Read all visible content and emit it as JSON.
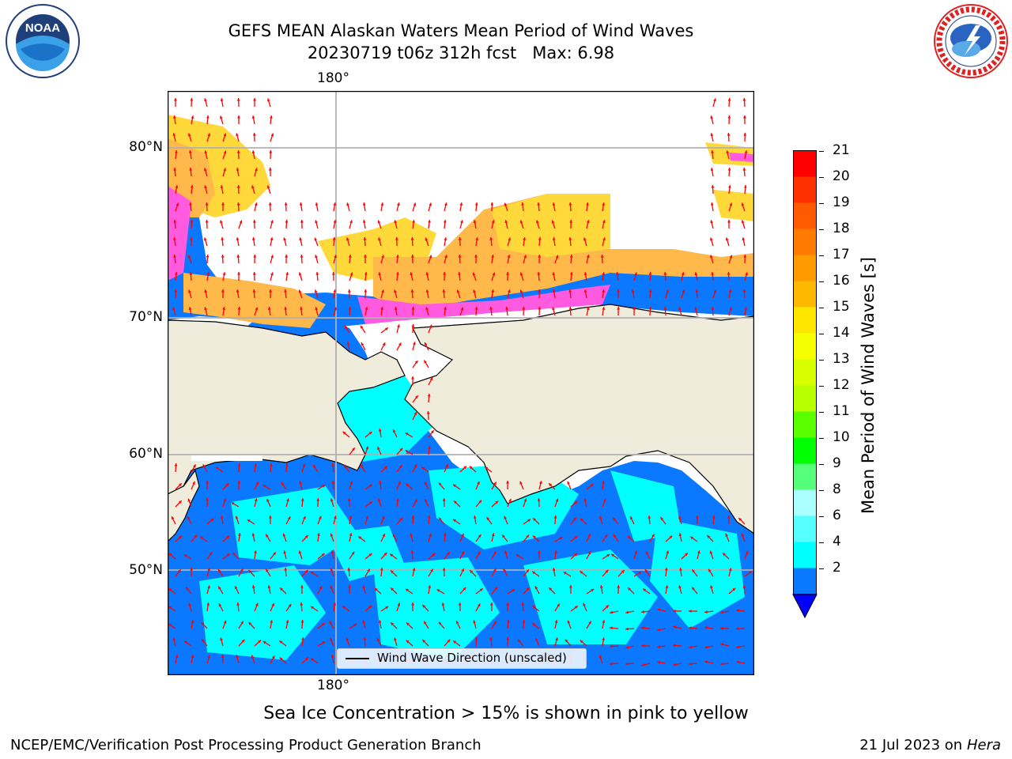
{
  "header": {
    "title_line1": "GEFS MEAN Alaskan Waters Mean Period of Wind Waves",
    "title_line2": "20230719 t06z 312h fcst   Max: 6.98"
  },
  "logos": {
    "left": "noaa-logo",
    "right": "nws-logo",
    "noaa_text": "NOAA",
    "nws_ring_text": "NATIONAL WEATHER SERVICE",
    "noaa_ring_text": "NATIONAL OCEANIC AND ATMOSPHERIC ADMINISTRATION · U.S. DEPARTMENT OF COMMERCE"
  },
  "map": {
    "lon_label_top": "180°",
    "lon_label_bottom": "180°",
    "lat_labels": [
      "80°N",
      "70°N",
      "60°N",
      "50°N"
    ],
    "legend_text": "Wind Wave Direction (unscaled)",
    "colors": {
      "land": "#efecdb",
      "ocean_2_4": "#0a78ff",
      "ocean_4_6": "#00ffff",
      "ice_pink": "#ff5ae0",
      "ice_orange": "#ffb84a",
      "ice_yellow": "#ffd93a",
      "arrow": "#ff0000",
      "grid": "#b0b0b0"
    }
  },
  "colorbar": {
    "label": "Mean Period of Wind Waves [s]",
    "ticks": [
      "21",
      "20",
      "19",
      "18",
      "17",
      "16",
      "15",
      "14",
      "13",
      "12",
      "11",
      "10",
      "9",
      "8",
      "6",
      "4",
      "2"
    ],
    "levels_top_to_bottom": [
      "#ff0000",
      "#ff3000",
      "#ff5a00",
      "#ff7a00",
      "#ff9a00",
      "#ffb800",
      "#ffe600",
      "#f5ff00",
      "#d8ff00",
      "#b8ff00",
      "#5aff00",
      "#00ff00",
      "#55ff7a",
      "#aaffff",
      "#55ffff",
      "#00ffff",
      "#0a78ff"
    ],
    "extend_color": "#0000ff"
  },
  "footer": {
    "note": "Sea Ice Concentration > 15% is shown in pink to yellow",
    "left": "NCEP/EMC/Verification Post Processing Product Generation Branch",
    "right_prefix": "21 Jul 2023 on ",
    "right_machine": "Hera"
  }
}
